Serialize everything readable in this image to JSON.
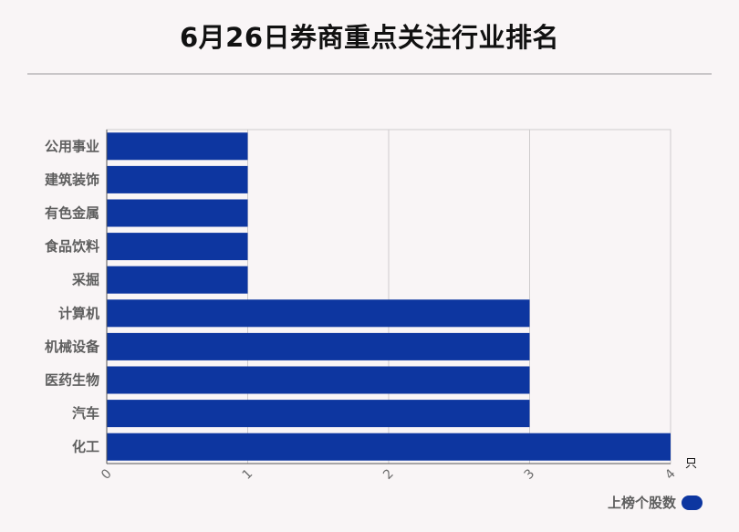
{
  "title": "6月26日券商重点关注行业排名",
  "legend": {
    "label": "上榜个股数",
    "color": "#0d36a0"
  },
  "chart_data": {
    "type": "bar",
    "orientation": "horizontal",
    "categories": [
      "公用事业",
      "建筑装饰",
      "有色金属",
      "食品饮料",
      "采掘",
      "计算机",
      "机械设备",
      "医药生物",
      "汽车",
      "化工"
    ],
    "series": [
      {
        "name": "上榜个股数",
        "values": [
          1,
          1,
          1,
          1,
          1,
          3,
          3,
          3,
          3,
          4
        ],
        "color": "#0d36a0"
      }
    ],
    "xlim": [
      0,
      4
    ],
    "xticks": [
      "0",
      "1",
      "2",
      "3",
      "4"
    ],
    "xunit": "只",
    "grid": true,
    "legend_position": "bottom-right"
  }
}
